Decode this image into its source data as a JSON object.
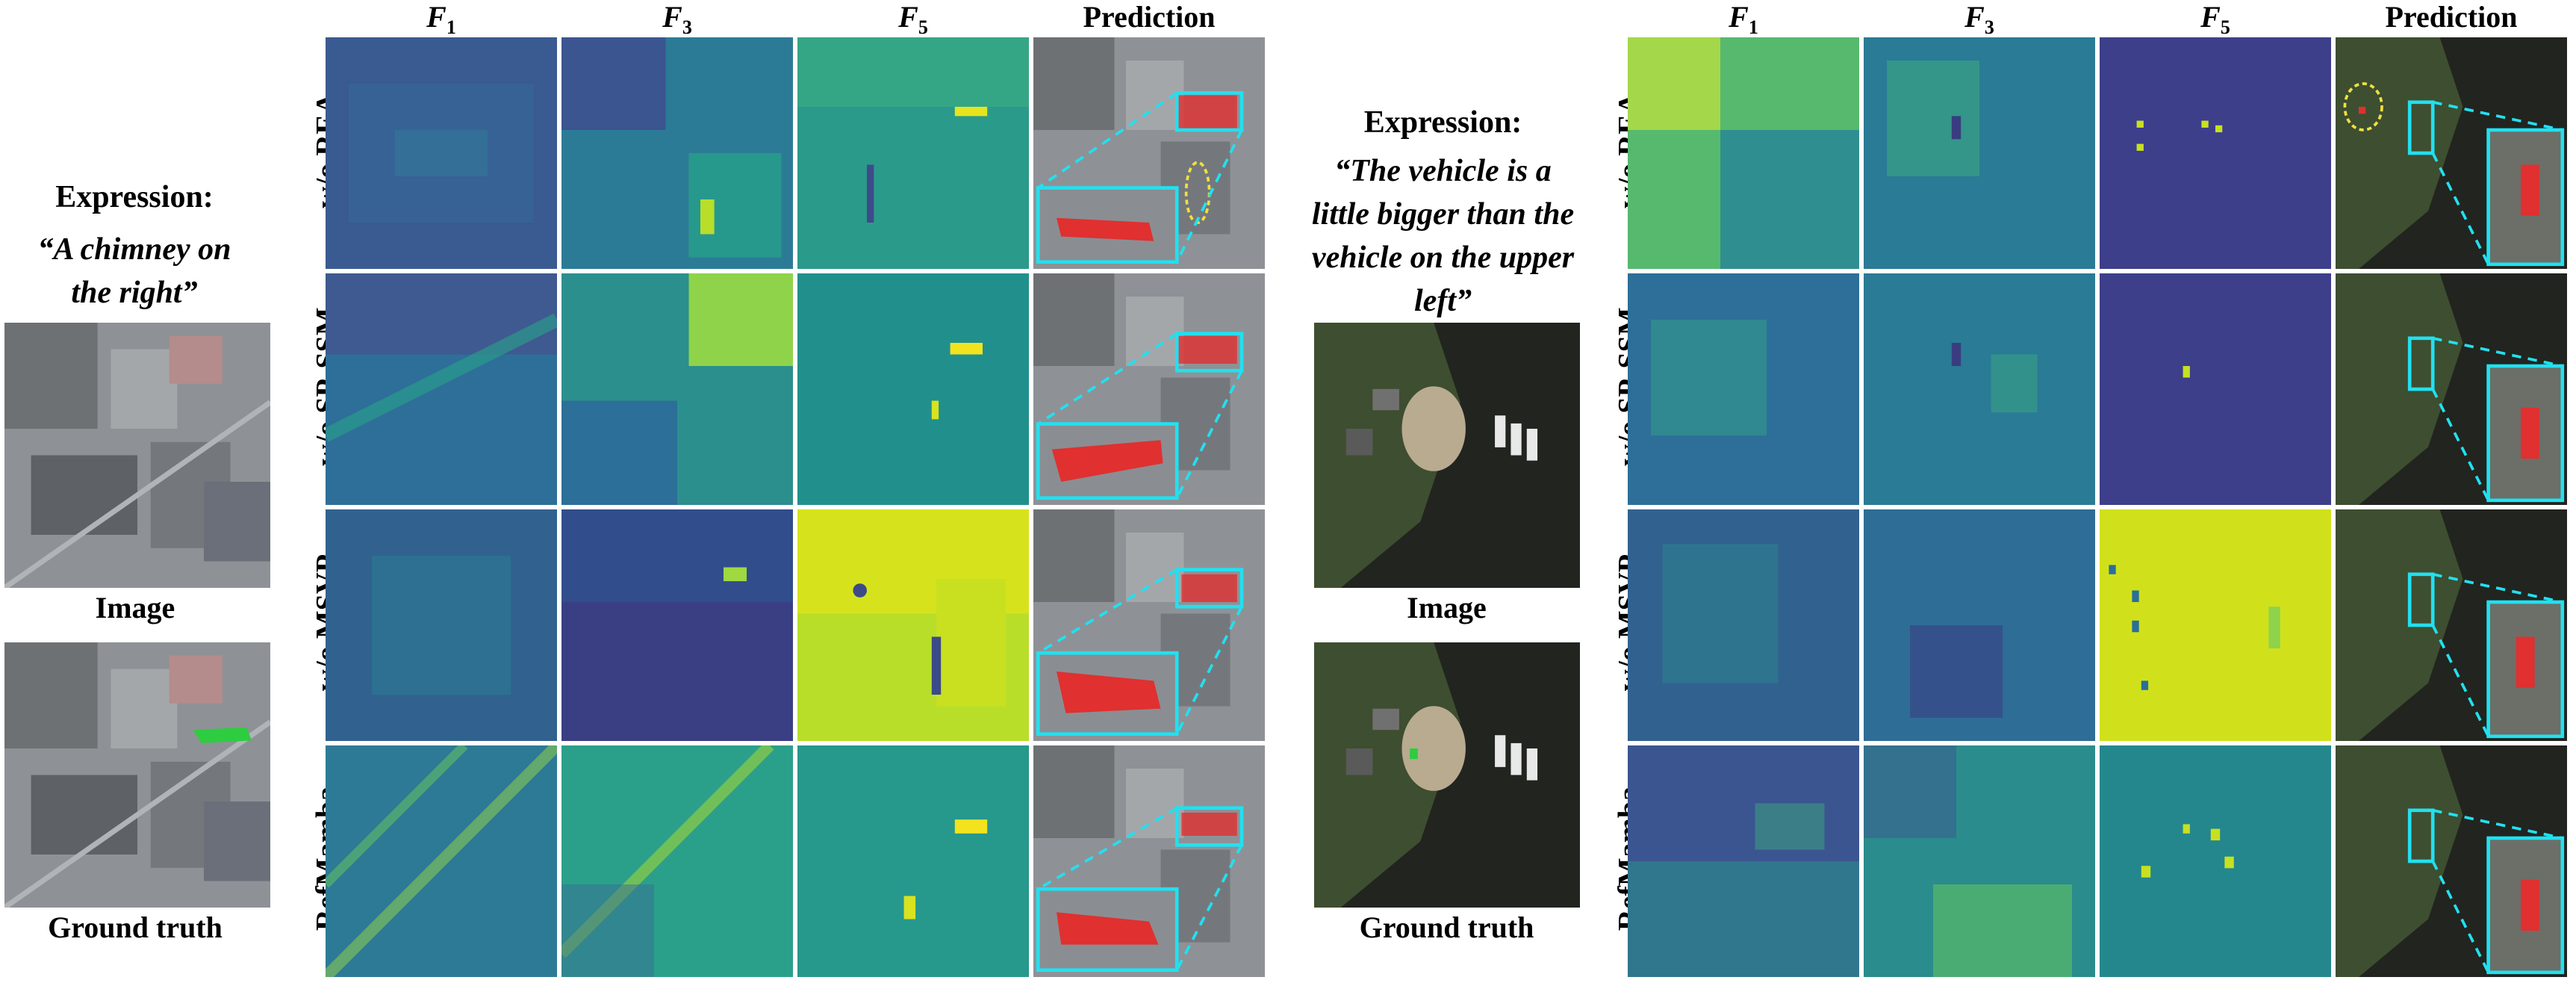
{
  "left": {
    "expression_title": "Expression:",
    "expression_text": "“A chimney on the right”",
    "image_caption": "Image",
    "gt_caption": "Ground truth",
    "columns": [
      {
        "base": "F",
        "sub": "1"
      },
      {
        "base": "F",
        "sub": "3"
      },
      {
        "base": "F",
        "sub": "5"
      },
      {
        "base": "Prediction",
        "sub": ""
      }
    ],
    "rows": [
      "w/o REA",
      "w/o SP-SSM",
      "w/o MSVP",
      "RefMamba"
    ]
  },
  "right": {
    "expression_title": "Expression:",
    "expression_text": "“The vehicle is a little bigger than the vehicle on the upper left”",
    "image_caption": "Image",
    "gt_caption": "Ground truth",
    "columns": [
      {
        "base": "F",
        "sub": "1"
      },
      {
        "base": "F",
        "sub": "3"
      },
      {
        "base": "F",
        "sub": "5"
      },
      {
        "base": "Prediction",
        "sub": ""
      }
    ],
    "rows": [
      "w/o REA",
      "w/o SP-SSM",
      "w/o MSVP",
      "RefMamba"
    ]
  },
  "colors": {
    "viridis_dark": "#3b2a7a",
    "viridis_mid": "#2a8c8c",
    "viridis_light": "#c8e020",
    "highlight_cyan": "#22e0f0",
    "mask_red": "#e03030",
    "gt_green": "#2ecc40",
    "ellipse_yellow": "#f0e040"
  }
}
